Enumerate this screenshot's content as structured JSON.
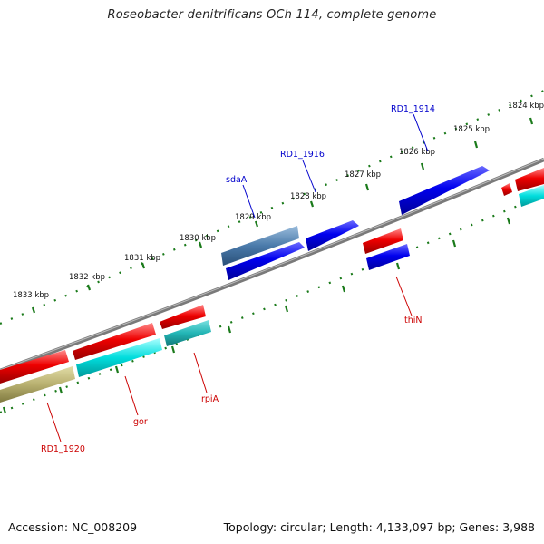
{
  "title": "Roseobacter denitrificans OCh 114, complete genome",
  "footer": {
    "accession": "Accession: NC_008209",
    "summary": "Topology: circular; Length: 4,133,097 bp; Genes: 3,988"
  },
  "kbp_labels": [
    "1824 kbp",
    "1825 kbp",
    "1826 kbp",
    "1827 kbp",
    "1828 kbp",
    "1829 kbp",
    "1830 kbp",
    "1831 kbp",
    "1832 kbp",
    "1833 kbp"
  ],
  "gene_labels": [
    {
      "text": "RD1_1914",
      "color": "#0000cc"
    },
    {
      "text": "RD1_1916",
      "color": "#0000cc"
    },
    {
      "text": "sdaA",
      "color": "#0000cc"
    },
    {
      "text": "thiN",
      "color": "#cc0000"
    },
    {
      "text": "rpiA",
      "color": "#cc0000"
    },
    {
      "text": "gor",
      "color": "#cc0000"
    },
    {
      "text": "RD1_1920",
      "color": "#cc0000"
    }
  ],
  "colors": {
    "backbone": "#7a7a7a",
    "tick": "#1a7a1a",
    "forward_cds": "#0000ee",
    "reverse_cds": "#ee0000",
    "cog_blue": "#4a7aaa",
    "cog_cyan": "#00dddd",
    "cog_teal": "#22b5b5",
    "cog_olive": "#b8b070",
    "callout_blue": "#0000cc",
    "callout_red": "#cc0000"
  }
}
